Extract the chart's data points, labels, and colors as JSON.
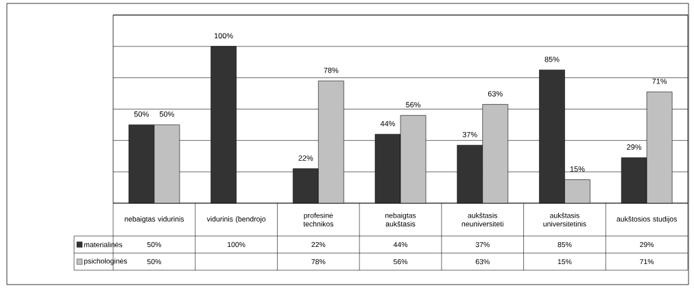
{
  "chart_data": {
    "type": "bar",
    "grid": "y",
    "legend": "bottom left",
    "ylim": [
      0,
      120
    ],
    "yticks": [
      {
        "value": 0,
        "label": null
      },
      {
        "value": 20,
        "label": null
      },
      {
        "value": 40,
        "label": null
      },
      {
        "value": 60,
        "label": null
      },
      {
        "value": 80,
        "label": null
      },
      {
        "value": 100,
        "label": null
      },
      {
        "value": 120,
        "label": null
      }
    ],
    "categories": [
      "nebaigtas vidurinis",
      "vidurinis (bendrojo",
      "profesinė technikos",
      "nebaigtas aukštasis",
      "aukštasis neuniversiteti",
      "aukštasis universitetinis",
      "aukštosios studijos"
    ],
    "series": [
      {
        "name": "materialinės",
        "color": "#333333",
        "values": [
          50,
          100,
          22,
          44,
          37,
          85,
          29
        ],
        "value_labels": [
          "50%",
          "100%",
          "22%",
          "44%",
          "37%",
          "85%",
          "29%"
        ]
      },
      {
        "name": "psichologinės",
        "color": "#c0c0c0",
        "values": [
          50,
          null,
          78,
          56,
          63,
          15,
          71
        ],
        "value_labels": [
          "50%",
          null,
          "78%",
          "56%",
          "63%",
          "15%",
          "71%"
        ]
      }
    ]
  }
}
